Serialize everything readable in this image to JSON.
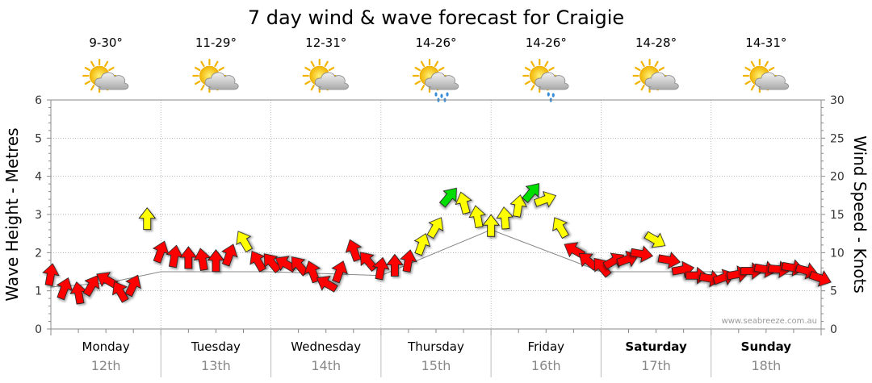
{
  "chart_data": {
    "type": "line",
    "title": "7 day wind & wave forecast for Craigie",
    "ylabel": "Wave Height - Metres",
    "y2label": "Wind Speed - Knots",
    "ylim": [
      0,
      6
    ],
    "y2lim": [
      0,
      30
    ],
    "yticks": [
      "0",
      "1",
      "2",
      "3",
      "4",
      "5",
      "6"
    ],
    "y2ticks": [
      "0",
      "5",
      "10",
      "15",
      "20",
      "25",
      "30"
    ],
    "watermark": "www.seabreeze.com.au",
    "grid": true,
    "days": [
      {
        "name": "Monday",
        "date": "12th",
        "bold": false,
        "temp": "9-30°",
        "icon": "partly-cloudy-icon"
      },
      {
        "name": "Tuesday",
        "date": "13th",
        "bold": false,
        "temp": "11-29°",
        "icon": "partly-cloudy-icon"
      },
      {
        "name": "Wednesday",
        "date": "14th",
        "bold": false,
        "temp": "12-31°",
        "icon": "partly-cloudy-icon"
      },
      {
        "name": "Thursday",
        "date": "15th",
        "bold": false,
        "temp": "14-26°",
        "icon": "showers-icon"
      },
      {
        "name": "Friday",
        "date": "16th",
        "bold": false,
        "temp": "14-26°",
        "icon": "light-rain-icon"
      },
      {
        "name": "Saturday",
        "date": "17th",
        "bold": true,
        "temp": "14-28°",
        "icon": "partly-cloudy-icon"
      },
      {
        "name": "Sunday",
        "date": "18th",
        "bold": true,
        "temp": "14-31°",
        "icon": "partly-cloudy-icon"
      }
    ],
    "colors": {
      "low": "#ff0000",
      "mid": "#ffff00",
      "high": "#00dd00",
      "grid": "#999999",
      "axis": "#888888",
      "wave": "#888888"
    },
    "wind_series": {
      "name": "Wind Speed",
      "unit": "knots",
      "x_hours": [
        0,
        3,
        6,
        9,
        12,
        15,
        18,
        21,
        24,
        27,
        30,
        33,
        36,
        39,
        42,
        45,
        48,
        51,
        54,
        57,
        60,
        63,
        66,
        69,
        72,
        75,
        78,
        81,
        84,
        87,
        90,
        93,
        96,
        99,
        102,
        105,
        108,
        111,
        114,
        117,
        120,
        123,
        126,
        129,
        132,
        135,
        138,
        141,
        144,
        147,
        150,
        153,
        156,
        159,
        162,
        165,
        168
      ],
      "values": [
        7.2,
        5.4,
        4.8,
        5.8,
        6.5,
        5.0,
        5.8,
        14.5,
        10.2,
        9.6,
        9.4,
        9.2,
        9.0,
        9.8,
        11.6,
        9.0,
        8.8,
        8.6,
        8.4,
        7.6,
        6.0,
        7.6,
        10.4,
        9.0,
        8.0,
        8.4,
        9.0,
        11.2,
        13.4,
        17.4,
        16.6,
        14.8,
        13.6,
        14.6,
        16.2,
        18.0,
        17.0,
        13.4,
        10.4,
        9.0,
        8.2,
        9.0,
        9.2,
        9.8,
        11.6,
        9.0,
        7.8,
        7.0,
        6.6,
        6.8,
        7.2,
        7.6,
        7.8,
        7.8,
        8.0,
        7.6,
        6.6
      ],
      "directions_deg": [
        10,
        20,
        350,
        30,
        300,
        330,
        25,
        0,
        20,
        10,
        0,
        350,
        0,
        20,
        330,
        330,
        320,
        300,
        320,
        340,
        300,
        20,
        340,
        320,
        10,
        0,
        10,
        20,
        30,
        40,
        345,
        350,
        0,
        355,
        10,
        40,
        70,
        330,
        300,
        310,
        320,
        60,
        70,
        100,
        120,
        100,
        80,
        90,
        100,
        70,
        80,
        90,
        100,
        95,
        100,
        105,
        110
      ]
    },
    "wave_series": {
      "name": "Wave Height",
      "unit": "metres",
      "x_hours": [
        0,
        12,
        24,
        48,
        72,
        96,
        120,
        144,
        168
      ],
      "values": [
        1.1,
        1.2,
        1.5,
        1.5,
        1.4,
        2.6,
        1.5,
        1.5,
        1.4
      ]
    }
  }
}
